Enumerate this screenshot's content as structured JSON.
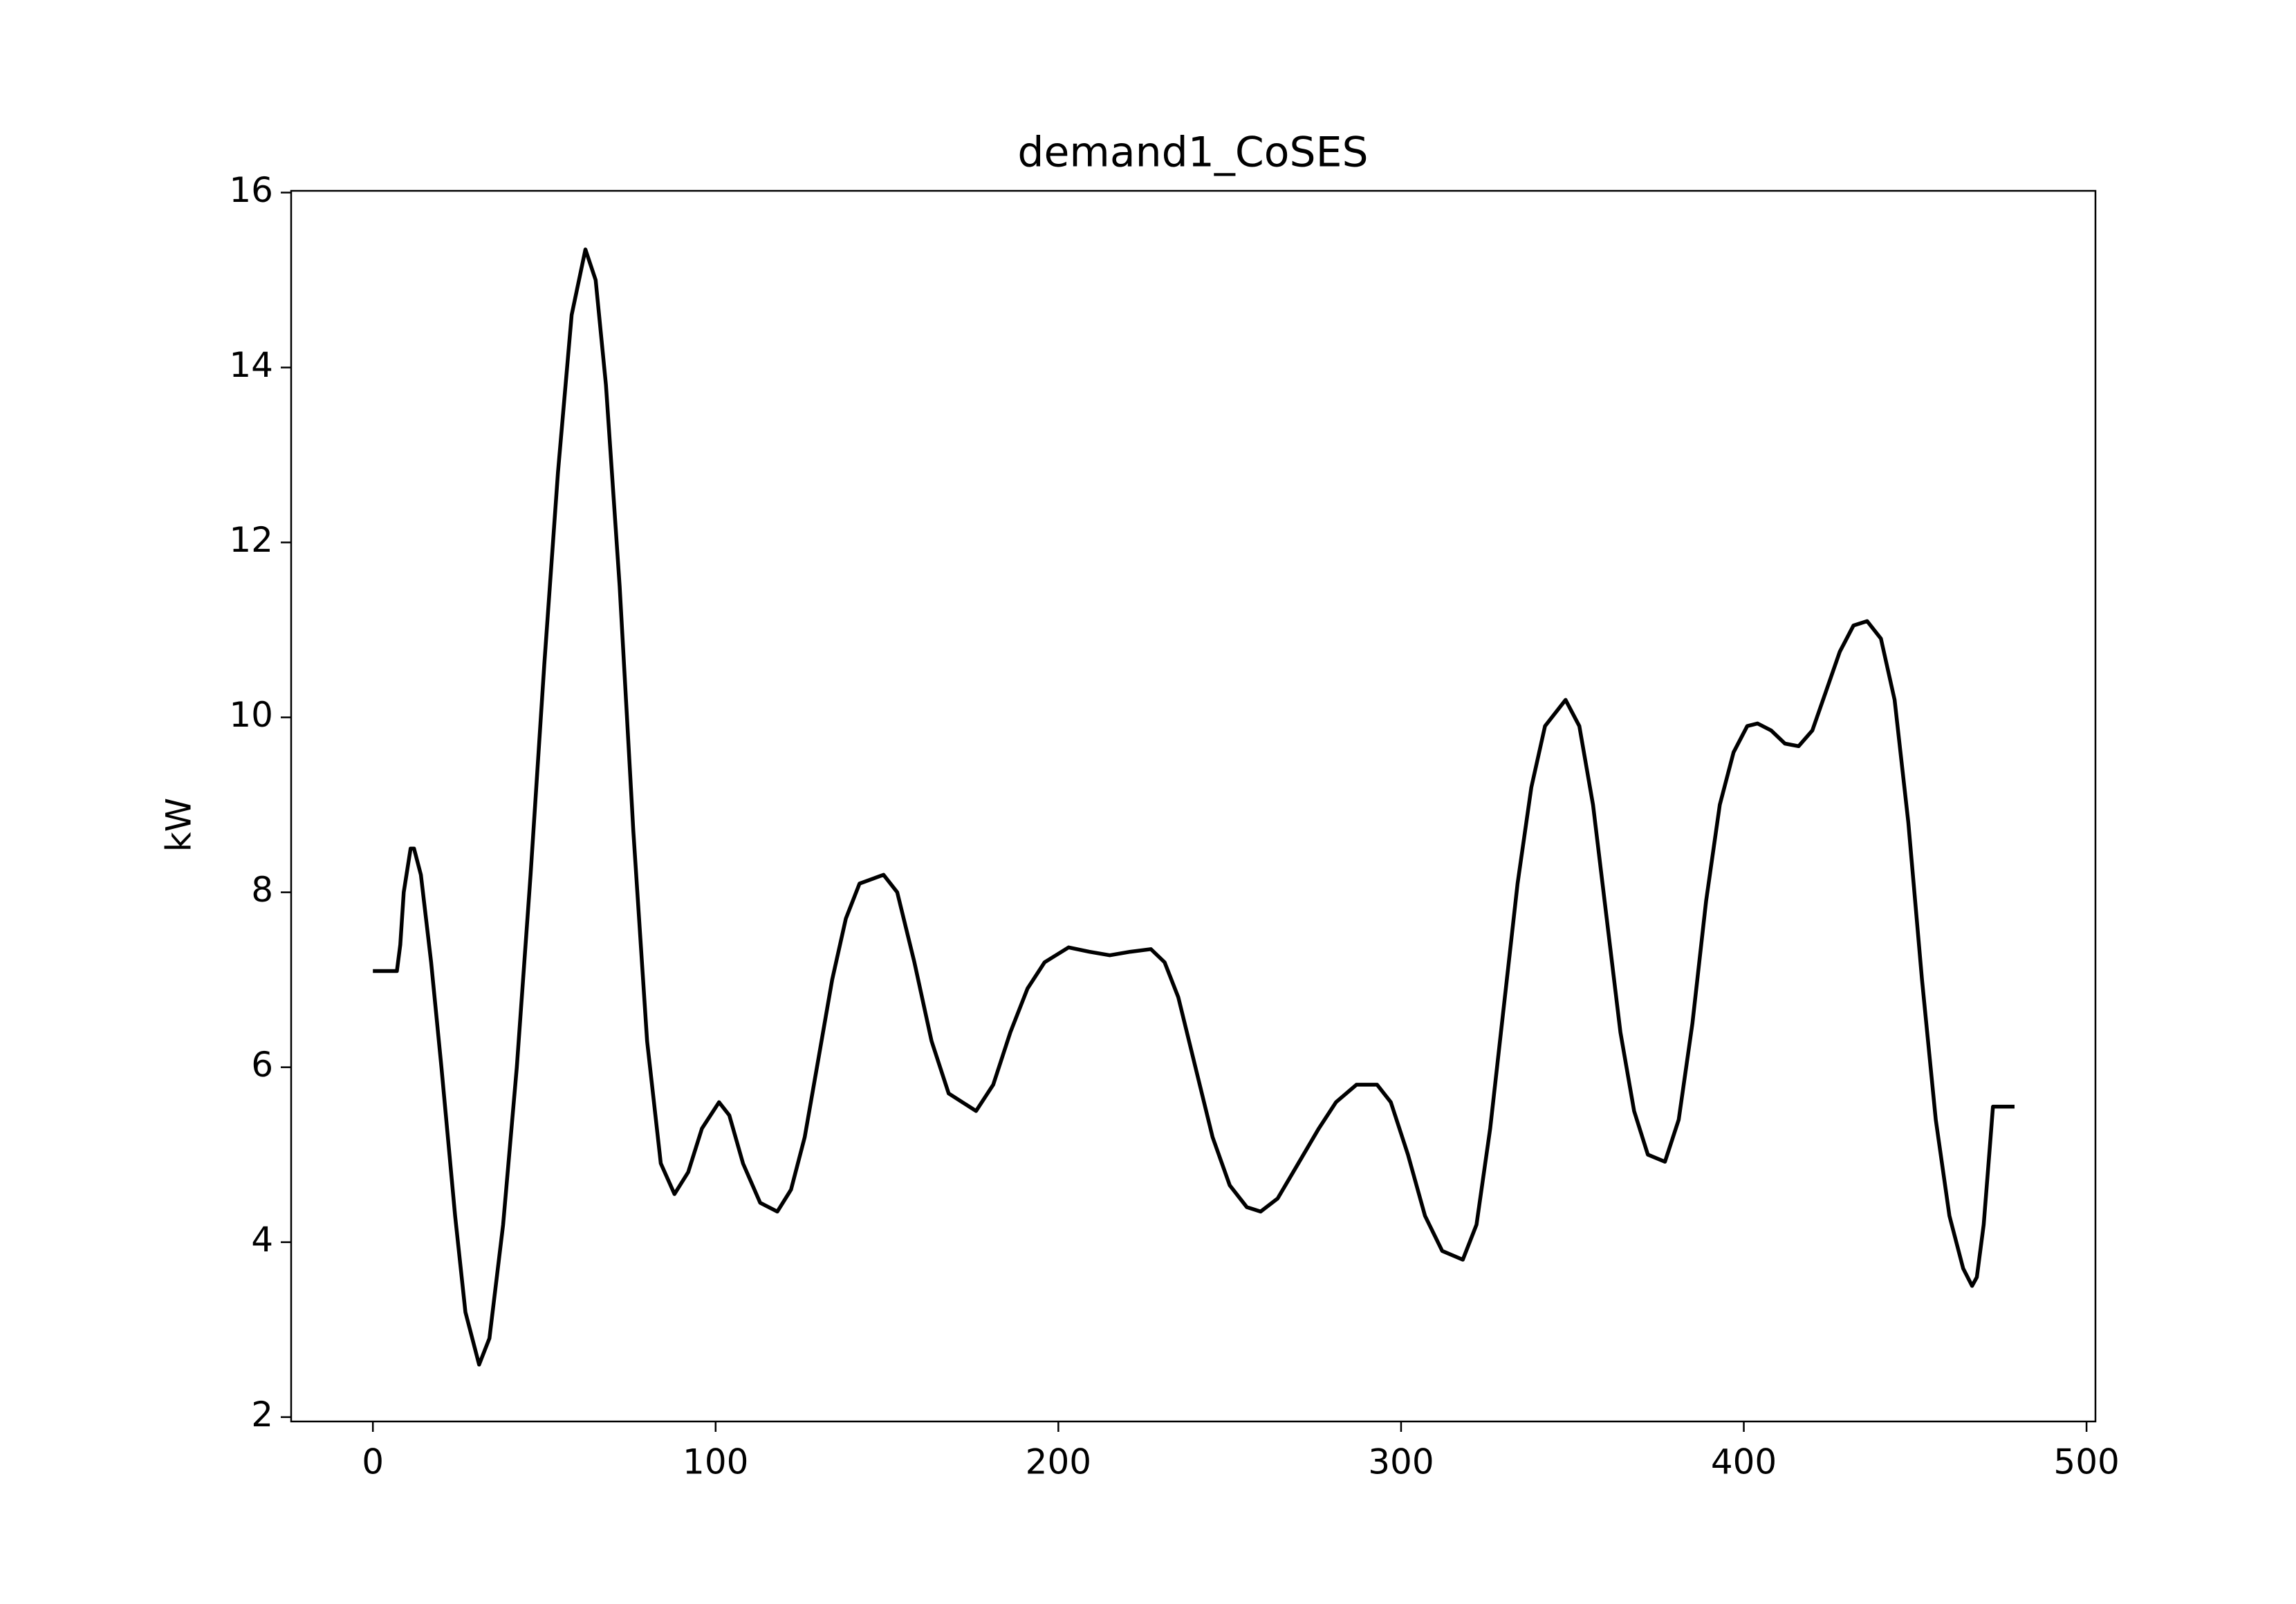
{
  "chart_data": {
    "type": "line",
    "title": "demand1_CoSES",
    "y_label": "kW",
    "series": [
      {
        "name": "demand1_CoSES",
        "color": "#000000",
        "x": [
          0,
          7,
          8,
          9,
          11,
          12,
          14,
          17,
          20,
          24,
          27,
          31,
          34,
          38,
          42,
          46,
          50,
          54,
          58,
          62,
          65,
          68,
          72,
          76,
          80,
          84,
          88,
          92,
          96,
          101,
          104,
          108,
          113,
          118,
          122,
          126,
          130,
          134,
          138,
          142,
          149,
          153,
          158,
          163,
          168,
          176,
          181,
          186,
          191,
          196,
          203,
          209,
          215,
          221,
          227,
          231,
          235,
          240,
          245,
          250,
          255,
          259,
          264,
          270,
          276,
          281,
          287,
          293,
          297,
          302,
          307,
          312,
          318,
          322,
          326,
          330,
          334,
          338,
          342,
          348,
          352,
          356,
          360,
          364,
          368,
          372,
          377,
          381,
          385,
          389,
          393,
          397,
          401,
          404,
          408,
          412,
          416,
          420,
          424,
          428,
          432,
          436,
          440,
          444,
          448,
          452,
          456,
          460,
          464,
          466.6,
          468,
          470,
          472,
          472.7,
          479
        ],
        "values": [
          7.1,
          7.1,
          7.4,
          8.0,
          8.5,
          8.5,
          8.2,
          7.2,
          6.0,
          4.3,
          3.2,
          2.6,
          2.9,
          4.2,
          6.0,
          8.2,
          10.6,
          12.8,
          14.6,
          15.35,
          15.0,
          13.8,
          11.5,
          8.7,
          6.3,
          4.9,
          4.55,
          4.8,
          5.3,
          5.6,
          5.45,
          4.9,
          4.45,
          4.35,
          4.6,
          5.2,
          6.1,
          7.0,
          7.7,
          8.1,
          8.2,
          8.0,
          7.2,
          6.3,
          5.7,
          5.5,
          5.8,
          6.4,
          6.9,
          7.2,
          7.37,
          7.32,
          7.28,
          7.32,
          7.35,
          7.2,
          6.8,
          6.0,
          5.2,
          4.65,
          4.4,
          4.35,
          4.5,
          4.9,
          5.3,
          5.6,
          5.8,
          5.8,
          5.6,
          5.0,
          4.3,
          3.9,
          3.8,
          4.2,
          5.3,
          6.7,
          8.1,
          9.2,
          9.9,
          10.2,
          9.9,
          9.0,
          7.7,
          6.4,
          5.5,
          5.0,
          4.92,
          5.4,
          6.5,
          7.9,
          9.0,
          9.6,
          9.9,
          9.93,
          9.85,
          9.7,
          9.67,
          9.85,
          10.3,
          10.75,
          11.05,
          11.1,
          10.9,
          10.2,
          8.8,
          7.0,
          5.4,
          4.3,
          3.7,
          3.5,
          3.6,
          4.2,
          5.2,
          5.55,
          5.55
        ]
      }
    ],
    "xlim": [
      -23.85,
      502.6
    ],
    "xticks": [
      0,
      100,
      200,
      300,
      400,
      500
    ],
    "ylim": [
      1.95,
      16.02
    ],
    "yticks": [
      2,
      4,
      6,
      8,
      10,
      12,
      14,
      16
    ],
    "grid": false
  }
}
